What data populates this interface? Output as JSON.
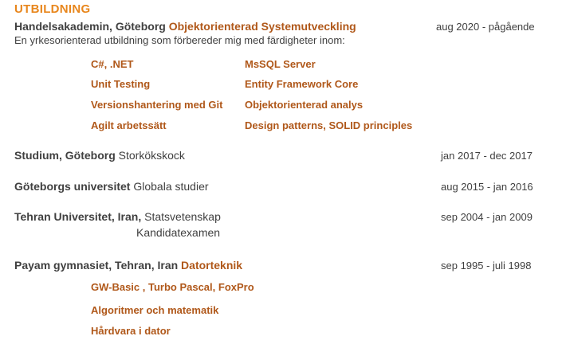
{
  "section": {
    "title": "UTBILDNING"
  },
  "entries": [
    {
      "institution": "Handelsakademin, Göteborg",
      "program": "Objektorienterad Systemutveckling",
      "dates": "aug 2020 - pågående",
      "description": "En yrkesorienterad utbildning som förbereder mig med färdigheter inom:"
    },
    {
      "institution": "Studium, Göteborg",
      "program": "Storkökskock",
      "dates": "jan 2017 - dec 2017"
    },
    {
      "institution": "Göteborgs universitet",
      "program": "Globala studier",
      "dates": "aug 2015 - jan 2016"
    },
    {
      "institution": "Tehran Universitet, Iran,",
      "program": "Statsvetenskap",
      "program2": "Kandidatexamen",
      "dates": "sep 2004 - jan 2009"
    },
    {
      "institution": "Payam gymnasiet, Tehran, Iran",
      "program": "Datorteknik",
      "dates": "sep 1995 - juli 1998"
    }
  ],
  "skills": {
    "left": [
      "C#, .NET",
      "Unit Testing",
      "Versionshantering med Git",
      "Agilt arbetssätt"
    ],
    "right": [
      "MsSQL Server",
      "Entity Framework Core",
      "Objektorienterad analys",
      "Design patterns, SOLID principles"
    ],
    "gymnasium": [
      "GW-Basic , Turbo Pascal, FoxPro",
      "Algoritmer och matematik",
      "Hårdvara i dator"
    ]
  },
  "colors": {
    "heading": "#e8861c",
    "accent": "#b0581a",
    "text": "#404040"
  }
}
